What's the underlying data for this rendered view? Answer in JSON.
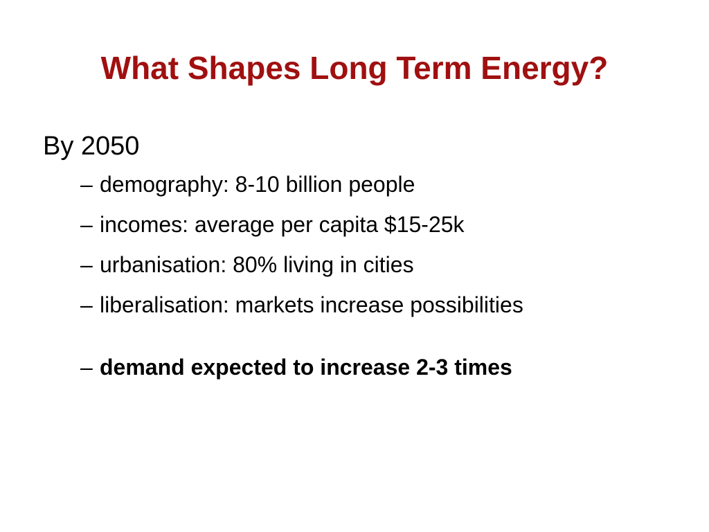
{
  "slide": {
    "title": "What Shapes Long Term Energy?",
    "title_color": "#a01010",
    "heading": "By 2050",
    "bullet_marker": "–",
    "items": [
      {
        "text": "demography: 8-10 billion people"
      },
      {
        "text": "incomes: average per capita $15-25k"
      },
      {
        "text": "urbanisation: 80% living in cities"
      },
      {
        "text": "liberalisation: markets increase possibilities"
      },
      {
        "text": "demand expected to increase 2-3 times",
        "bold": true
      }
    ]
  }
}
